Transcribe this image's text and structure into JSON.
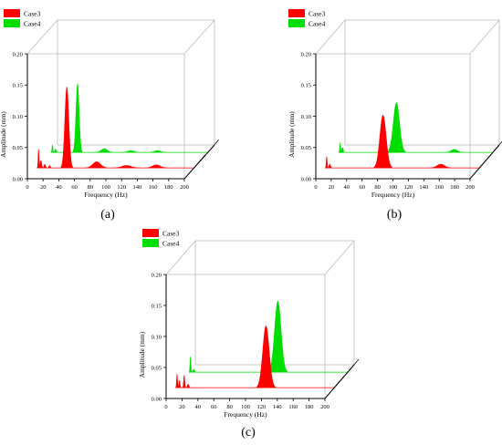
{
  "colors": {
    "case3": "#ff0000",
    "case4": "#00dd00",
    "frame": "#000000",
    "box": "#bbbbbb"
  },
  "chart_data": [
    {
      "panel_label": "(a)",
      "type": "area",
      "title": "",
      "xlabel": "Frequency (Hz)",
      "ylabel": "Amplitude (mm)",
      "xlim": [
        0,
        200
      ],
      "ylim": [
        0,
        0.2
      ],
      "xticks": [
        "0",
        "20",
        "40",
        "60",
        "80",
        "100",
        "120",
        "140",
        "160",
        "180",
        "200"
      ],
      "yticks": [
        "0.00",
        "0.05",
        "0.10",
        "0.15",
        "0.20"
      ],
      "legend": [
        "Case3",
        "Case4"
      ],
      "series": [
        {
          "name": "Case3",
          "color": "#ff0000",
          "peaks": [
            {
              "x": 2,
              "y": 0.03,
              "width": 0.6
            },
            {
              "x": 5,
              "y": 0.012,
              "width": 1.0
            },
            {
              "x": 10,
              "y": 0.006,
              "width": 1.0
            },
            {
              "x": 16,
              "y": 0.004,
              "width": 1.0
            },
            {
              "x": 38,
              "y": 0.13,
              "width": 2.5
            },
            {
              "x": 76,
              "y": 0.01,
              "width": 5
            },
            {
              "x": 114,
              "y": 0.004,
              "width": 6
            },
            {
              "x": 152,
              "y": 0.005,
              "width": 5
            }
          ]
        },
        {
          "name": "Case4",
          "color": "#00dd00",
          "peaks": [
            {
              "x": 2,
              "y": 0.012,
              "width": 0.6
            },
            {
              "x": 6,
              "y": 0.005,
              "width": 1.0
            },
            {
              "x": 34,
              "y": 0.11,
              "width": 2.0
            },
            {
              "x": 68,
              "y": 0.006,
              "width": 4
            },
            {
              "x": 102,
              "y": 0.003,
              "width": 4
            },
            {
              "x": 136,
              "y": 0.003,
              "width": 4
            }
          ]
        }
      ]
    },
    {
      "panel_label": "(b)",
      "type": "area",
      "title": "",
      "xlabel": "Frequency (Hz)",
      "ylabel": "Amplitude (mm)",
      "xlim": [
        0,
        200
      ],
      "ylim": [
        0,
        0.2
      ],
      "xticks": [
        "0",
        "20",
        "40",
        "60",
        "80",
        "100",
        "120",
        "140",
        "160",
        "180",
        "200"
      ],
      "yticks": [
        "0.00",
        "0.05",
        "0.10",
        "0.15",
        "0.20"
      ],
      "legend": [
        "Case3",
        "Case4"
      ],
      "series": [
        {
          "name": "Case3",
          "color": "#ff0000",
          "peaks": [
            {
              "x": 2,
              "y": 0.018,
              "width": 0.6
            },
            {
              "x": 6,
              "y": 0.006,
              "width": 1.0
            },
            {
              "x": 75,
              "y": 0.085,
              "width": 4
            },
            {
              "x": 150,
              "y": 0.006,
              "width": 5
            }
          ]
        },
        {
          "name": "Case4",
          "color": "#00dd00",
          "peaks": [
            {
              "x": 2,
              "y": 0.015,
              "width": 0.6
            },
            {
              "x": 5,
              "y": 0.008,
              "width": 1.0
            },
            {
              "x": 75,
              "y": 0.08,
              "width": 4
            },
            {
              "x": 150,
              "y": 0.005,
              "width": 4
            }
          ]
        }
      ]
    },
    {
      "panel_label": "(c)",
      "type": "area",
      "title": "",
      "xlabel": "Frequency (Hz)",
      "ylabel": "Amplitude (mm)",
      "xlim": [
        0,
        200
      ],
      "ylim": [
        0,
        0.2
      ],
      "xticks": [
        "0",
        "20",
        "40",
        "60",
        "80",
        "100",
        "120",
        "140",
        "160",
        "180",
        "200"
      ],
      "yticks": [
        "0.00",
        "0.05",
        "0.10",
        "0.15",
        "0.20"
      ],
      "legend": [
        "Case3",
        "Case4"
      ],
      "series": [
        {
          "name": "Case3",
          "color": "#ff0000",
          "peaks": [
            {
              "x": 2,
              "y": 0.022,
              "width": 0.6
            },
            {
              "x": 5,
              "y": 0.012,
              "width": 0.7
            },
            {
              "x": 11,
              "y": 0.02,
              "width": 0.7
            },
            {
              "x": 16,
              "y": 0.006,
              "width": 1.0
            },
            {
              "x": 114,
              "y": 0.1,
              "width": 4
            }
          ]
        },
        {
          "name": "Case4",
          "color": "#00dd00",
          "peaks": [
            {
              "x": 2,
              "y": 0.025,
              "width": 0.6
            },
            {
              "x": 6,
              "y": 0.005,
              "width": 1.0
            },
            {
              "x": 112,
              "y": 0.115,
              "width": 4
            }
          ]
        }
      ]
    }
  ]
}
